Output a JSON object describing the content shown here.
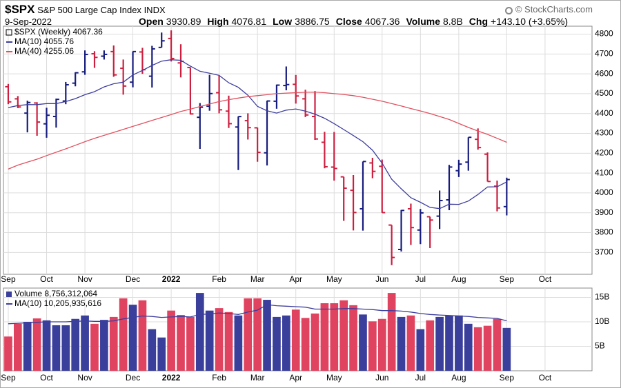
{
  "header": {
    "symbol": "$SPX",
    "name": "S&P 500 Large Cap Index",
    "exchange": "INDX",
    "date": "9-Sep-2022",
    "copyright": "© StockCharts.com",
    "stats": [
      {
        "label": "Open",
        "value": "3930.89"
      },
      {
        "label": "High",
        "value": "4076.81"
      },
      {
        "label": "Low",
        "value": "3886.75"
      },
      {
        "label": "Close",
        "value": "4067.36"
      },
      {
        "label": "Volume",
        "value": "8.8B"
      },
      {
        "label": "Chg",
        "value": "+143.10 (+3.65%)"
      }
    ]
  },
  "chart_data": [
    {
      "type": "ohlc",
      "name": "$SPX (Weekly) 4067.36",
      "up_color": "#161c7d",
      "down_color": "#cc1f3f",
      "open": [
        4535,
        4474,
        4402,
        4453,
        4348,
        4385,
        4463,
        4553,
        4610,
        4701,
        4689,
        4712,
        4628,
        4558,
        4710,
        4588,
        4733,
        4778,
        4655,
        4632,
        4381,
        4437,
        4505,
        4412,
        4332,
        4364,
        4328,
        4202,
        4462,
        4541,
        4547,
        4474,
        4385,
        4255,
        4130,
        4081,
        4013,
        3920,
        4151,
        4134,
        3838,
        3715,
        3920,
        3813,
        3880,
        3883,
        3965,
        4112,
        4155,
        4270,
        4195,
        4034,
        3930.89
      ],
      "high": [
        4549,
        4488,
        4465,
        4457,
        4429,
        4475,
        4559,
        4608,
        4718,
        4714,
        4718,
        4743,
        4672,
        4713,
        4731,
        4741,
        4808,
        4819,
        4749,
        4632,
        4453,
        4595,
        4590,
        4490,
        4385,
        4401,
        4329,
        4465,
        4546,
        4637,
        4594,
        4520,
        4513,
        4308,
        4307,
        4081,
        4090,
        4158,
        4177,
        4168,
        3838,
        3914,
        3946,
        3919,
        3880,
        4012,
        4141,
        4167,
        4280,
        4325,
        4204,
        4062,
        4076.81
      ],
      "low": [
        4447,
        4427,
        4305,
        4288,
        4278,
        4329,
        4447,
        4537,
        4595,
        4630,
        4672,
        4585,
        4495,
        4532,
        4600,
        4531,
        4733,
        4662,
        4582,
        4395,
        4222,
        4414,
        4401,
        4327,
        4115,
        4269,
        4157,
        4138,
        4424,
        4517,
        4450,
        4382,
        4267,
        4124,
        4062,
        3859,
        3811,
        3810,
        4074,
        3900,
        3636,
        3705,
        3738,
        3742,
        3722,
        3818,
        3913,
        4080,
        4112,
        4218,
        4057,
        3907,
        3886.75
      ],
      "close": [
        4458.58,
        4432.99,
        4455.48,
        4357.04,
        4391.34,
        4471.37,
        4544.9,
        4605.38,
        4697.53,
        4682.85,
        4697.96,
        4594.62,
        4538.43,
        4712.02,
        4620.64,
        4725.79,
        4766.18,
        4677.03,
        4662.85,
        4397.94,
        4431.85,
        4500.53,
        4418.64,
        4348.87,
        4384.65,
        4328.87,
        4204.31,
        4463.12,
        4543.06,
        4545.86,
        4488.28,
        4392.59,
        4271.78,
        4131.93,
        4123.34,
        4023.89,
        3901.36,
        4158.24,
        4108.54,
        3900.86,
        3674.84,
        3911.74,
        3825.33,
        3899.38,
        3863.16,
        3961.63,
        4130.29,
        4145.19,
        4280.15,
        4228.48,
        4057.66,
        3924.26,
        4067.36
      ],
      "series": [
        {
          "name": "MA(10) 4055.76",
          "color": "#3d3d9e",
          "values": [
            4430,
            4440,
            4445,
            4445,
            4450,
            4450,
            4460,
            4475,
            4495,
            4510,
            4534,
            4550,
            4558,
            4594,
            4617,
            4642,
            4664,
            4671,
            4668,
            4639,
            4613,
            4603,
            4592,
            4555,
            4532,
            4492,
            4436,
            4414,
            4402,
            4417,
            4423,
            4412,
            4397,
            4376,
            4349,
            4319,
            4289,
            4258,
            4215,
            4150,
            4069,
            4021,
            3976,
            3953,
            3927,
            3921,
            3943,
            3942,
            3959,
            3992,
            4030,
            4031,
            4055.76
          ]
        },
        {
          "name": "MA(40) 4255.06",
          "color": "#e0505e",
          "values": [
            4120,
            4140,
            4155,
            4170,
            4188,
            4205,
            4222,
            4240,
            4258,
            4275,
            4290,
            4305,
            4320,
            4335,
            4350,
            4365,
            4380,
            4395,
            4410,
            4422,
            4435,
            4448,
            4460,
            4470,
            4478,
            4485,
            4490,
            4495,
            4500,
            4503,
            4505,
            4507,
            4508,
            4505,
            4500,
            4496,
            4490,
            4482,
            4472,
            4462,
            4450,
            4438,
            4425,
            4413,
            4400,
            4385,
            4370,
            4350,
            4330,
            4312,
            4295,
            4275,
            4255.06
          ]
        }
      ],
      "xlim": [
        -0.5,
        60.9
      ],
      "xticks": [
        {
          "value": 0,
          "label": "Sep"
        },
        {
          "value": 4,
          "label": "Oct"
        },
        {
          "value": 8,
          "label": "Nov"
        },
        {
          "value": 13,
          "label": "Dec"
        },
        {
          "value": 17,
          "label": "2022",
          "bold": true
        },
        {
          "value": 22,
          "label": "Feb"
        },
        {
          "value": 26,
          "label": "Mar"
        },
        {
          "value": 30,
          "label": "Apr"
        },
        {
          "value": 34,
          "label": "May"
        },
        {
          "value": 39,
          "label": "Jun"
        },
        {
          "value": 43,
          "label": "Jul"
        },
        {
          "value": 47,
          "label": "Aug"
        },
        {
          "value": 52,
          "label": "Sep"
        },
        {
          "value": 56,
          "label": "Oct"
        }
      ],
      "ylim": [
        3590,
        4840
      ],
      "yticks": [
        3700,
        3800,
        3900,
        4000,
        4100,
        4200,
        4300,
        4400,
        4500,
        4600,
        4700,
        4800
      ],
      "grid": true
    },
    {
      "type": "bar",
      "name": "Volume 8,756,312,064",
      "up_color": "#3a3f9c",
      "down_color": "#e0435f",
      "values": [
        7000000000,
        9600000000,
        10000000000,
        10700000000,
        10300000000,
        9300000000,
        9300000000,
        10600000000,
        11300000000,
        9600000000,
        10400000000,
        11000000000,
        14800000000,
        13500000000,
        14400000000,
        8500000000,
        6800000000,
        12300000000,
        11400000000,
        11000000000,
        15900000000,
        12300000000,
        12800000000,
        12000000000,
        11300000000,
        14800000000,
        14800000000,
        14500000000,
        11000000000,
        11300000000,
        12500000000,
        10800000000,
        11700000000,
        13800000000,
        13800000000,
        14400000000,
        13400000000,
        11500000000,
        10100000000,
        10600000000,
        15900000000,
        11000000000,
        11300000000,
        8500000000,
        10300000000,
        11000000000,
        11300000000,
        11300000000,
        9600000000,
        8900000000,
        9200000000,
        10600000000,
        8756312064
      ],
      "series": [
        {
          "name": "MA(10) 10,205,935,616",
          "color": "#3d3d9e",
          "values": [
            9600000000,
            9700000000,
            9800000000,
            9900000000,
            10000000000,
            10000000000,
            10000000000,
            10100000000,
            10200000000,
            10100000000,
            10100000000,
            10200000000,
            10600000000,
            10900000000,
            11200000000,
            11100000000,
            10900000000,
            11000000000,
            11100000000,
            11000000000,
            11500000000,
            11600000000,
            11800000000,
            11700000000,
            11500000000,
            12000000000,
            12400000000,
            13500000000,
            13300000000,
            13200000000,
            13100000000,
            13000000000,
            12600000000,
            12600000000,
            12600000000,
            12700000000,
            12700000000,
            12600000000,
            12500000000,
            12300000000,
            12300000000,
            12200000000,
            12000000000,
            11700000000,
            11500000000,
            11400000000,
            11300000000,
            11200000000,
            11100000000,
            10900000000,
            10800000000,
            10700000000,
            10205935616
          ]
        }
      ],
      "xlim": [
        -0.5,
        60.9
      ],
      "xticks": [
        {
          "value": 0,
          "label": "Sep"
        },
        {
          "value": 4,
          "label": "Oct"
        },
        {
          "value": 8,
          "label": "Nov"
        },
        {
          "value": 13,
          "label": "Dec"
        },
        {
          "value": 17,
          "label": "2022",
          "bold": true
        },
        {
          "value": 22,
          "label": "Feb"
        },
        {
          "value": 26,
          "label": "Mar"
        },
        {
          "value": 30,
          "label": "Apr"
        },
        {
          "value": 34,
          "label": "May"
        },
        {
          "value": 39,
          "label": "Jun"
        },
        {
          "value": 43,
          "label": "Jul"
        },
        {
          "value": 47,
          "label": "Aug"
        },
        {
          "value": 52,
          "label": "Sep"
        },
        {
          "value": 56,
          "label": "Oct"
        }
      ],
      "ylim": [
        0,
        16900000000
      ],
      "yticks": [
        {
          "value": 5000000000,
          "label": "5B"
        },
        {
          "value": 10000000000,
          "label": "10B"
        },
        {
          "value": 15000000000,
          "label": "15B"
        }
      ],
      "grid": true
    }
  ]
}
